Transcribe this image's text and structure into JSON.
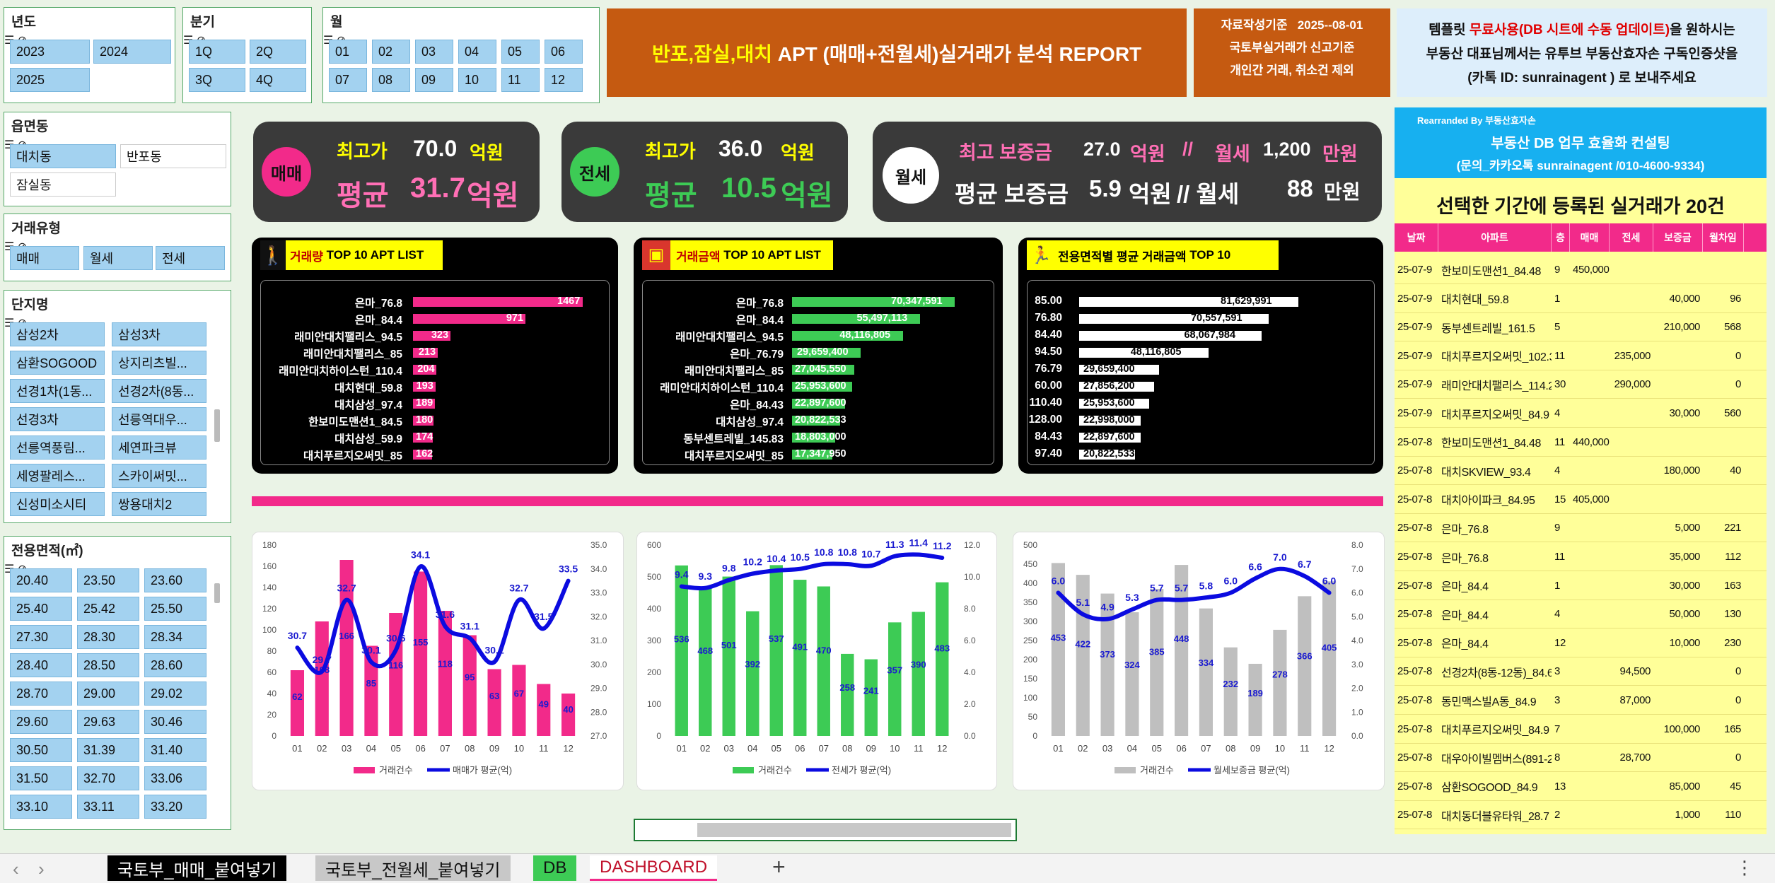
{
  "slicers": {
    "year": {
      "title": "년도",
      "items": [
        "2023",
        "2024",
        "2025"
      ]
    },
    "quarter": {
      "title": "분기",
      "items": [
        "1Q",
        "2Q",
        "3Q",
        "4Q"
      ]
    },
    "month": {
      "title": "월",
      "items": [
        "01",
        "02",
        "03",
        "04",
        "05",
        "06",
        "07",
        "08",
        "09",
        "10",
        "11",
        "12"
      ]
    },
    "district": {
      "title": "읍면동",
      "items": [
        "대치동",
        "반포동",
        "잠실동"
      ]
    },
    "trade_type": {
      "title": "거래유형",
      "items": [
        "매매",
        "월세",
        "전세"
      ]
    },
    "complex": {
      "title": "단지명",
      "items": [
        "삼성2차",
        "삼성3차",
        "삼환SOGOOD",
        "상지리츠빌...",
        "선경1차(1동...",
        "선경2차(8동...",
        "선경3차",
        "선릉역대우...",
        "선릉역풍림...",
        "세연파크뷰",
        "세영팔레스...",
        "스카이써밋...",
        "신성미소시티",
        "쌍용대치2"
      ]
    },
    "area": {
      "title": "전용면적(㎡)",
      "items": [
        "20.40",
        "23.50",
        "23.60",
        "25.40",
        "25.42",
        "25.50",
        "27.30",
        "28.30",
        "28.34",
        "28.40",
        "28.50",
        "28.60",
        "28.70",
        "29.00",
        "29.02",
        "29.60",
        "29.63",
        "30.46",
        "30.50",
        "31.39",
        "31.40",
        "31.50",
        "32.70",
        "33.06",
        "33.10",
        "33.11",
        "33.20"
      ]
    }
  },
  "title": {
    "part1": "반포,잠실,대치",
    "part2": "APT (매매+전월세)실거래가 분석  REPORT"
  },
  "info": {
    "line1a": "자료작성기준",
    "line1b": "2025--08-01",
    "line2": "국토부실거래가 신고기준",
    "line3": "개인간 거래, 취소건 제외"
  },
  "promo": {
    "l1a": "템플릿 ",
    "l1b": "무료사용(DB 시트에 수동 업데이트)",
    "l1c": "을 원하시는",
    "l2": "부동산 대표님께서는 유투브 부동산효자손 구독인증샷을",
    "l3": "(카톡 ID: sunrainagent ) 로 보내주세요"
  },
  "consult": {
    "by": "Rearranded By  부동산효자손",
    "name": "부동산 DB 업무 효율화 컨설팅",
    "contact": "(문의_카카오톡 sunrainagent /010-4600-9334)"
  },
  "kpi": {
    "sale": {
      "badge": "매매",
      "max_label": "최고가",
      "max_value": "70.0",
      "max_unit": "억원",
      "avg_label": "평균",
      "avg_value": "31.7",
      "avg_unit": "억원"
    },
    "jeonse": {
      "badge": "전세",
      "max_label": "최고가",
      "max_value": "36.0",
      "max_unit": "억원",
      "avg_label": "평균",
      "avg_value": "10.5",
      "avg_unit": "억원"
    },
    "monthly": {
      "badge": "월세",
      "max_dep_label": "최고 보증금",
      "max_dep_value": "27.0",
      "max_dep_unit": "억원",
      "sep": "//",
      "max_rent_label": "월세",
      "max_rent_value": "1,200",
      "max_rent_unit": "만원",
      "avg_dep_label": "평균 보증금",
      "avg_dep_value": "5.9",
      "avg_dep_unit": "억원",
      "sep2": "// 월세",
      "avg_rent_value": "88",
      "avg_rent_unit": "만원"
    }
  },
  "top10": {
    "volume": {
      "title_a": "거래량",
      "title_b": "TOP 10 APT LIST",
      "color": "#f22a8a",
      "labels": [
        "은마_76.8",
        "은마_84.4",
        "래미안대치팰리스_94.5",
        "래미안대치팰리스_85",
        "래미안대치하이스턴_110.4",
        "대치현대_59.8",
        "대치삼성_97.4",
        "한보미도맨션1_84.5",
        "대치삼성_59.9",
        "대치푸르지오써밋_85"
      ],
      "values": [
        1467,
        971,
        323,
        213,
        204,
        193,
        189,
        180,
        174,
        162
      ],
      "texts": [
        "1467",
        "971",
        "323",
        "213",
        "204",
        "193",
        "189",
        "180",
        "174",
        "162"
      ]
    },
    "amount": {
      "title_a": "거래금액",
      "title_b": "TOP 10 APT LIST",
      "color": "#3dcb55",
      "labels": [
        "은마_76.8",
        "은마_84.4",
        "래미안대치팰리스_94.5",
        "은마_76.79",
        "래미안대치팰리스_85",
        "래미안대치하이스턴_110.4",
        "은마_84.43",
        "대치삼성_97.4",
        "동부센트레빌_145.83",
        "대치푸르지오써밋_85"
      ],
      "values": [
        70347591,
        55497113,
        48116805,
        29659400,
        27045550,
        25953600,
        22897600,
        20822533,
        18803000,
        17347950
      ],
      "texts": [
        "70,347,591",
        "55,497,113",
        "48,116,805",
        "29,659,400",
        "27,045,550",
        "25,953,600",
        "22,897,600",
        "20,822,533",
        "18,803,000",
        "17,347,950"
      ]
    },
    "area": {
      "title_a": "전용면적별 평균 거래금액",
      "title_b": "TOP 10",
      "color": "#ffffff",
      "labels": [
        "85.00",
        "76.80",
        "84.40",
        "94.50",
        "76.79",
        "60.00",
        "110.40",
        "128.00",
        "84.43",
        "97.40"
      ],
      "values": [
        81629991,
        70557591,
        68067984,
        48116805,
        29659400,
        27856200,
        25953600,
        22998000,
        22897600,
        20822533
      ],
      "texts": [
        "81,629,991",
        "70,557,591",
        "68,067,984",
        "48,116,805",
        "29,659,400",
        "27,856,200",
        "25,953,600",
        "22,998,000",
        "22,897,600",
        "20,822,533"
      ]
    }
  },
  "chart_data": [
    {
      "type": "bar",
      "title": "",
      "categories": [
        "01",
        "02",
        "03",
        "04",
        "05",
        "06",
        "07",
        "08",
        "09",
        "10",
        "11",
        "12"
      ],
      "series": [
        {
          "name": "거래건수",
          "type": "bar",
          "color": "#f22a8a",
          "values": [
            62,
            108,
            166,
            85,
            116,
            155,
            118,
            95,
            63,
            67,
            49,
            40
          ]
        },
        {
          "name": "매매가 평균(억)",
          "type": "line",
          "axis": "right",
          "color": "#0b0be0",
          "values": [
            30.7,
            29.7,
            32.7,
            30.1,
            30.6,
            34.1,
            31.6,
            31.1,
            30.1,
            32.7,
            31.5,
            33.5
          ]
        }
      ],
      "ylim": [
        0,
        180
      ],
      "yticks": [
        0,
        20,
        40,
        60,
        80,
        100,
        120,
        140,
        160,
        180
      ],
      "y2lim": [
        27,
        35
      ],
      "y2ticks": [
        "27.0",
        "28.0",
        "29.0",
        "30.0",
        "31.0",
        "32.0",
        "33.0",
        "34.0",
        "35.0"
      ]
    },
    {
      "type": "bar",
      "title": "",
      "categories": [
        "01",
        "02",
        "03",
        "04",
        "05",
        "06",
        "07",
        "08",
        "09",
        "10",
        "11",
        "12"
      ],
      "series": [
        {
          "name": "거래건수",
          "type": "bar",
          "color": "#3dcb55",
          "values": [
            536,
            468,
            501,
            392,
            537,
            491,
            470,
            258,
            241,
            357,
            390,
            483
          ]
        },
        {
          "name": "전세가 평균(억)",
          "type": "line",
          "axis": "right",
          "color": "#0b0be0",
          "values": [
            9.4,
            9.3,
            9.8,
            10.2,
            10.4,
            10.5,
            10.8,
            10.8,
            10.7,
            11.3,
            11.4,
            11.2
          ]
        }
      ],
      "ylim": [
        0,
        600
      ],
      "yticks": [
        0,
        100,
        200,
        300,
        400,
        500,
        600
      ],
      "y2lim": [
        0,
        12
      ],
      "y2ticks": [
        "0.0",
        "2.0",
        "4.0",
        "6.0",
        "8.0",
        "10.0",
        "12.0"
      ]
    },
    {
      "type": "bar",
      "title": "",
      "categories": [
        "01",
        "02",
        "03",
        "04",
        "05",
        "06",
        "07",
        "08",
        "09",
        "10",
        "11",
        "12"
      ],
      "series": [
        {
          "name": "거래건수",
          "type": "bar",
          "color": "#bfbfbf",
          "values": [
            453,
            422,
            373,
            324,
            385,
            448,
            334,
            232,
            189,
            278,
            366,
            405
          ]
        },
        {
          "name": "월세보증금 평균(억)",
          "type": "line",
          "axis": "right",
          "color": "#0b0be0",
          "values": [
            6.0,
            5.1,
            4.9,
            5.3,
            5.7,
            5.7,
            5.8,
            6.0,
            6.6,
            7.0,
            6.7,
            6.0
          ]
        }
      ],
      "ylim": [
        0,
        500
      ],
      "yticks": [
        0,
        50,
        100,
        150,
        200,
        250,
        300,
        350,
        400,
        450,
        500
      ],
      "y2lim": [
        0,
        8
      ],
      "y2ticks": [
        "0.0",
        "1.0",
        "2.0",
        "3.0",
        "4.0",
        "5.0",
        "6.0",
        "7.0",
        "8.0"
      ]
    }
  ],
  "table": {
    "title": "선택한 기간에 등록된 실거래가 20건",
    "headers": [
      "날짜",
      "아파트",
      "층",
      "매매",
      "전세",
      "보증금",
      "월차임"
    ],
    "rows": [
      [
        "25-07-9",
        "한보미도맨션1_84.48",
        "9",
        "450,000",
        "",
        "",
        ""
      ],
      [
        "25-07-9",
        "대치현대_59.8",
        "1",
        "",
        "",
        "40,000",
        "96"
      ],
      [
        "25-07-9",
        "동부센트레빌_161.5",
        "5",
        "",
        "",
        "210,000",
        "568"
      ],
      [
        "25-07-9",
        "대치푸르지오써밋_102.3",
        "11",
        "",
        "235,000",
        "",
        "0"
      ],
      [
        "25-07-9",
        "래미안대치팰리스_114.2",
        "30",
        "",
        "290,000",
        "",
        "0"
      ],
      [
        "25-07-9",
        "대치푸르지오써밋_84.9",
        "4",
        "",
        "",
        "30,000",
        "560"
      ],
      [
        "25-07-8",
        "한보미도맨션1_84.48",
        "11",
        "440,000",
        "",
        "",
        ""
      ],
      [
        "25-07-8",
        "대치SKVIEW_93.4",
        "4",
        "",
        "",
        "180,000",
        "40"
      ],
      [
        "25-07-8",
        "대치아이파크_84.95",
        "15",
        "405,000",
        "",
        "",
        ""
      ],
      [
        "25-07-8",
        "은마_76.8",
        "9",
        "",
        "",
        "5,000",
        "221"
      ],
      [
        "25-07-8",
        "은마_76.8",
        "11",
        "",
        "",
        "35,000",
        "112"
      ],
      [
        "25-07-8",
        "은마_84.4",
        "1",
        "",
        "",
        "30,000",
        "163"
      ],
      [
        "25-07-8",
        "은마_84.4",
        "4",
        "",
        "",
        "50,000",
        "130"
      ],
      [
        "25-07-8",
        "은마_84.4",
        "12",
        "",
        "",
        "10,000",
        "230"
      ],
      [
        "25-07-8",
        "선경2차(8동-12동)_84.6",
        "3",
        "",
        "94,500",
        "",
        "0"
      ],
      [
        "25-07-8",
        "동민맥스빌A동_84.9",
        "3",
        "",
        "87,000",
        "",
        "0"
      ],
      [
        "25-07-8",
        "대치푸르지오써밋_84.9",
        "7",
        "",
        "",
        "100,000",
        "165"
      ],
      [
        "25-07-8",
        "대우아이빌멤버스(891-2",
        "8",
        "",
        "28,700",
        "",
        "0"
      ],
      [
        "25-07-8",
        "삼환SOGOOD_84.9",
        "13",
        "",
        "",
        "85,000",
        "45"
      ],
      [
        "25-07-8",
        "대치동더블유타워_28.7",
        "2",
        "",
        "",
        "1,000",
        "110"
      ]
    ]
  },
  "tabs": [
    "국토부_매매_붙여넣기",
    "국토부_전월세_붙여넣기",
    "DB",
    "DASHBOARD"
  ],
  "tab_add": "+"
}
